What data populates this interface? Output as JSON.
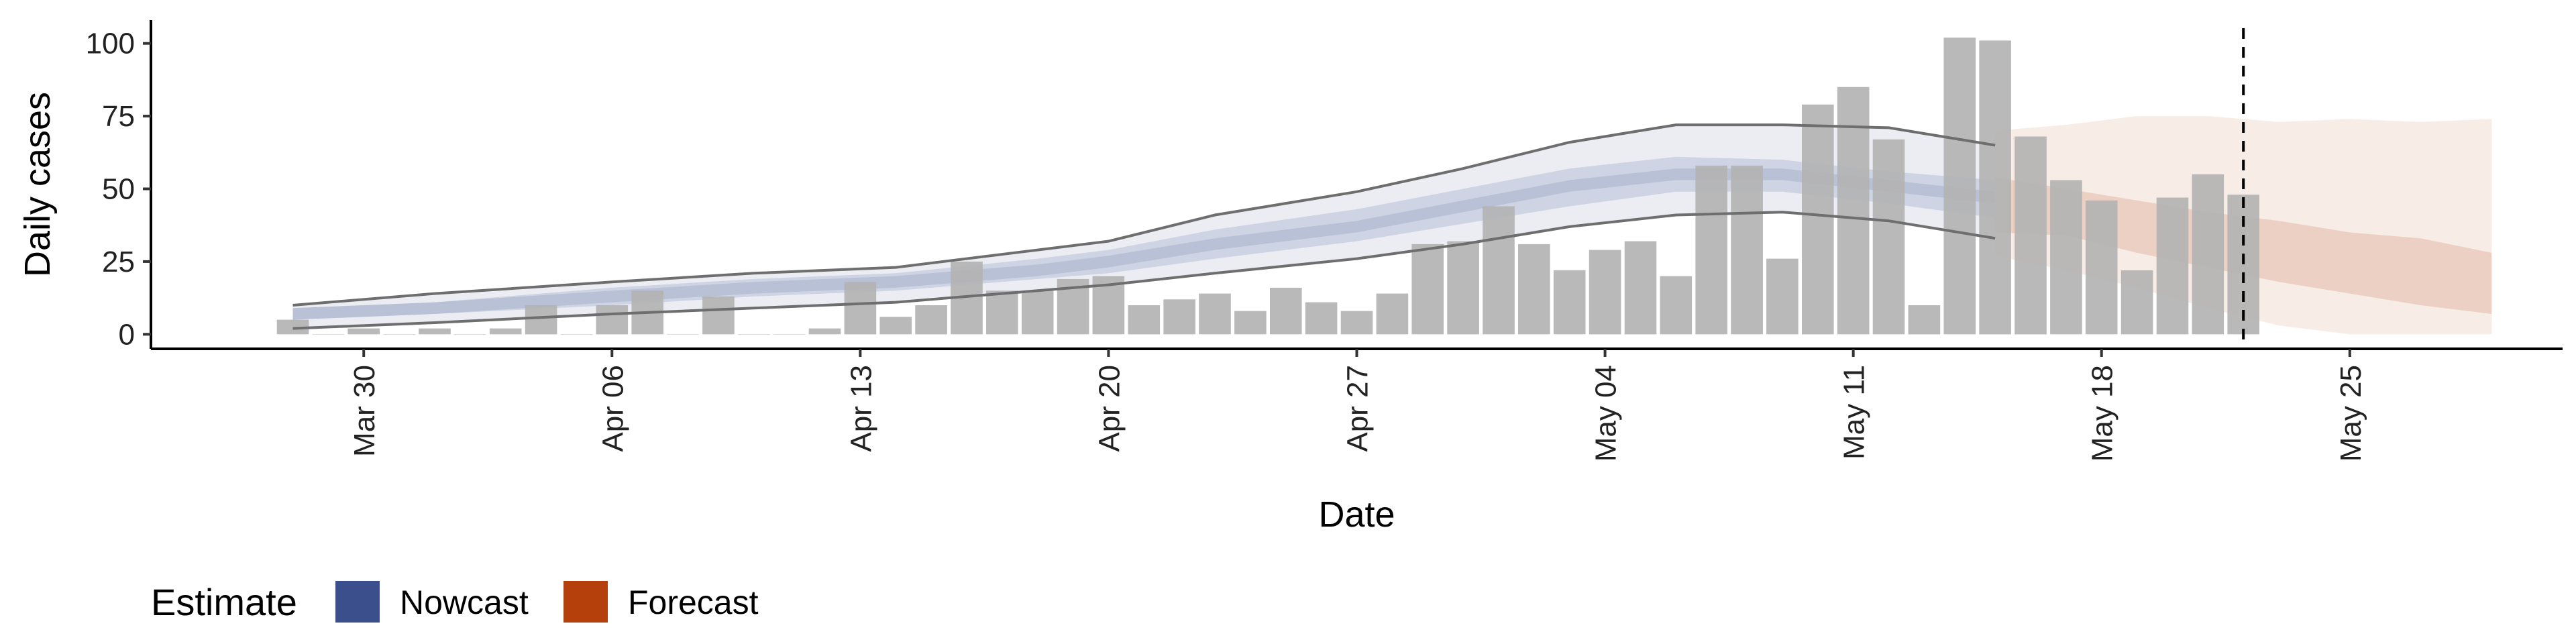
{
  "chart_data": {
    "type": "bar",
    "title": "",
    "xlabel": "Date",
    "ylabel": "Daily cases",
    "x_ticks": [
      "Mar 30",
      "Apr 06",
      "Apr 13",
      "Apr 20",
      "Apr 27",
      "May 04",
      "May 11",
      "May 18",
      "May 25"
    ],
    "y_ticks": [
      "0",
      "25",
      "50",
      "75",
      "100"
    ],
    "ylim": [
      -5,
      108
    ],
    "xlim": [
      "2020-03-24",
      "2020-05-31"
    ],
    "grid": false,
    "legend": {
      "title": "Estimate",
      "position": "bottom-left",
      "items": [
        {
          "label": "Nowcast",
          "color": "#3b4f8c"
        },
        {
          "label": "Forecast",
          "color": "#b5400c"
        }
      ]
    },
    "colors": {
      "bars": "#b3b3b3",
      "nowcast": "#3b4f8c",
      "forecast": "#b5400c",
      "bound_line": "#6e6e6e"
    },
    "forecast_date": "2020-05-22",
    "series": [
      {
        "name": "Daily cases",
        "kind": "bar",
        "x": [
          "2020-03-28",
          "2020-03-29",
          "2020-03-30",
          "2020-03-31",
          "2020-04-01",
          "2020-04-02",
          "2020-04-03",
          "2020-04-04",
          "2020-04-05",
          "2020-04-06",
          "2020-04-07",
          "2020-04-08",
          "2020-04-09",
          "2020-04-10",
          "2020-04-11",
          "2020-04-12",
          "2020-04-13",
          "2020-04-14",
          "2020-04-15",
          "2020-04-16",
          "2020-04-17",
          "2020-04-18",
          "2020-04-19",
          "2020-04-20",
          "2020-04-21",
          "2020-04-22",
          "2020-04-23",
          "2020-04-24",
          "2020-04-25",
          "2020-04-26",
          "2020-04-27",
          "2020-04-28",
          "2020-04-29",
          "2020-04-30",
          "2020-05-01",
          "2020-05-02",
          "2020-05-03",
          "2020-05-04",
          "2020-05-05",
          "2020-05-06",
          "2020-05-07",
          "2020-05-08",
          "2020-05-09",
          "2020-05-10",
          "2020-05-11",
          "2020-05-12",
          "2020-05-13",
          "2020-05-14",
          "2020-05-15",
          "2020-05-16",
          "2020-05-17",
          "2020-05-18",
          "2020-05-19",
          "2020-05-20",
          "2020-05-21",
          "2020-05-22"
        ],
        "values": [
          5,
          0,
          2,
          0,
          2,
          0,
          2,
          10,
          0,
          10,
          15,
          0,
          13,
          0,
          0,
          2,
          18,
          6,
          10,
          25,
          15,
          15,
          19,
          20,
          10,
          12,
          14,
          8,
          16,
          11,
          8,
          14,
          31,
          32,
          44,
          31,
          22,
          29,
          32,
          20,
          58,
          58,
          26,
          79,
          85,
          67,
          10,
          102,
          101,
          68,
          53,
          46,
          22,
          47,
          55,
          48
        ]
      },
      {
        "name": "Nowcast",
        "kind": "band",
        "x": [
          "2020-03-28",
          "2020-04-01",
          "2020-04-06",
          "2020-04-10",
          "2020-04-14",
          "2020-04-18",
          "2020-04-20",
          "2020-04-23",
          "2020-04-27",
          "2020-04-30",
          "2020-05-03",
          "2020-05-06",
          "2020-05-09",
          "2020-05-12",
          "2020-05-15"
        ],
        "median": [
          7,
          9,
          13,
          16,
          18,
          22,
          25,
          31,
          37,
          44,
          51,
          55,
          55,
          51,
          47
        ],
        "lower_50": [
          5,
          7,
          10,
          13,
          15,
          19,
          21,
          26,
          32,
          38,
          44,
          49,
          49,
          45,
          40
        ],
        "upper_50": [
          9,
          11,
          16,
          19,
          21,
          26,
          29,
          36,
          43,
          50,
          57,
          61,
          60,
          56,
          53
        ],
        "lower_90": [
          2,
          4,
          7,
          9,
          11,
          15,
          17,
          21,
          26,
          31,
          37,
          41,
          42,
          39,
          33
        ],
        "upper_90": [
          10,
          14,
          18,
          21,
          23,
          29,
          32,
          41,
          49,
          57,
          66,
          72,
          72,
          71,
          65
        ]
      },
      {
        "name": "Forecast",
        "kind": "band",
        "x": [
          "2020-05-15",
          "2020-05-17",
          "2020-05-19",
          "2020-05-21",
          "2020-05-23",
          "2020-05-25",
          "2020-05-27",
          "2020-05-29"
        ],
        "median": [
          44,
          42,
          37,
          33,
          28,
          22,
          18,
          14
        ],
        "lower_50": [
          35,
          34,
          28,
          23,
          18,
          14,
          10,
          7
        ],
        "upper_50": [
          54,
          50,
          46,
          42,
          39,
          35,
          33,
          28
        ],
        "lower_90": [
          27,
          22,
          16,
          9,
          3,
          0,
          0,
          0
        ],
        "upper_90": [
          70,
          72,
          75,
          75,
          73,
          74,
          73,
          74
        ]
      }
    ]
  }
}
